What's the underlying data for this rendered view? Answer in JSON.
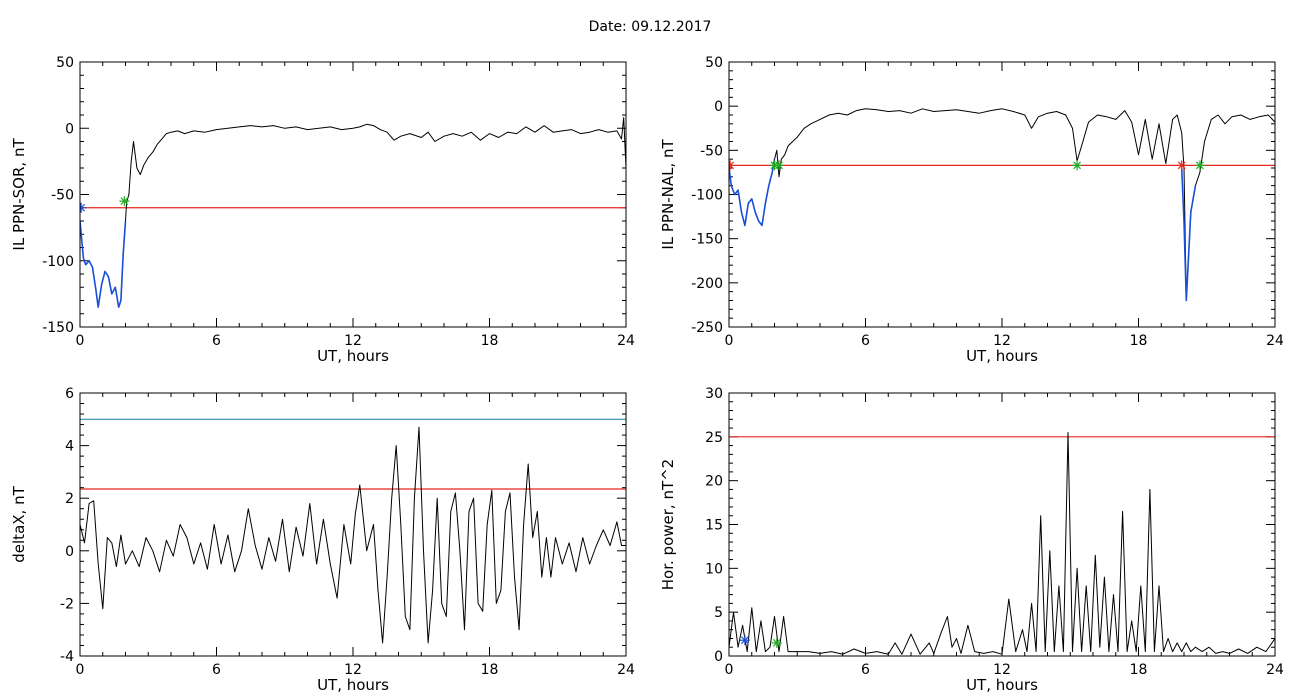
{
  "title": "Date:  09.12.2017",
  "colors": {
    "trace": "#000000",
    "selected": "#1a4fd8",
    "threshold_red": "#e8281e",
    "threshold_teal": "#2e8fb0",
    "marker_green": "#22aa22",
    "marker_red": "#e8281e",
    "marker_blue": "#1a4fd8"
  },
  "chart_data": [
    {
      "type": "line",
      "xlabel": "UT, hours",
      "ylabel": "IL PPN-SOR, nT",
      "xlim": [
        0,
        24
      ],
      "ylim": [
        -150,
        50
      ],
      "xticks": [
        0,
        6,
        12,
        18,
        24
      ],
      "yticks": [
        -150,
        -100,
        -50,
        0,
        50
      ],
      "grid": false,
      "thresholds": [
        {
          "y": -60,
          "color": "#e8281e"
        }
      ],
      "series": [
        {
          "color": "#000000",
          "x": [
            0,
            0.08,
            0.15,
            0.25,
            0.4,
            0.55,
            0.7,
            0.8,
            0.95,
            1.1,
            1.25,
            1.4,
            1.55,
            1.7,
            1.8,
            1.9,
            2.0,
            2.05,
            2.15,
            2.25,
            2.35,
            2.5,
            2.65,
            2.8,
            3.0,
            3.2,
            3.4,
            3.6,
            3.8,
            4.0,
            4.3,
            4.6,
            5.0,
            5.5,
            6.0,
            6.5,
            7.0,
            7.5,
            8.0,
            8.5,
            9.0,
            9.5,
            10.0,
            10.5,
            11.0,
            11.5,
            12.0,
            12.3,
            12.6,
            12.9,
            13.2,
            13.5,
            13.8,
            14.1,
            14.5,
            15.0,
            15.3,
            15.6,
            16.0,
            16.4,
            16.8,
            17.2,
            17.6,
            18.0,
            18.4,
            18.8,
            19.2,
            19.6,
            20.0,
            20.4,
            20.8,
            21.2,
            21.6,
            22.0,
            22.4,
            22.8,
            23.2,
            23.6,
            23.8,
            23.9,
            24.0
          ],
          "y": [
            -70,
            -85,
            -98,
            -103,
            -100,
            -105,
            -122,
            -135,
            -118,
            -108,
            -112,
            -125,
            -120,
            -135,
            -130,
            -95,
            -70,
            -56,
            -50,
            -25,
            -10,
            -30,
            -35,
            -28,
            -22,
            -18,
            -12,
            -8,
            -4,
            -3,
            -2,
            -4,
            -2,
            -3,
            -1,
            0,
            1,
            2,
            1,
            2,
            0,
            1,
            -1,
            0,
            1,
            -1,
            0,
            1,
            3,
            2,
            -1,
            -3,
            -9,
            -6,
            -4,
            -7,
            -3,
            -10,
            -6,
            -4,
            -6,
            -3,
            -9,
            -4,
            -7,
            -3,
            -4,
            1,
            -3,
            2,
            -3,
            -2,
            -1,
            -4,
            -3,
            -1,
            -3,
            -2,
            -8,
            8,
            -30
          ]
        },
        {
          "color": "#1a4fd8",
          "x": [
            0,
            0.08,
            0.15,
            0.25,
            0.4,
            0.55,
            0.7,
            0.8,
            0.95,
            1.1,
            1.25,
            1.4,
            1.55,
            1.7,
            1.8,
            1.9,
            2.0
          ],
          "y": [
            -70,
            -85,
            -98,
            -103,
            -100,
            -105,
            -122,
            -135,
            -118,
            -108,
            -112,
            -125,
            -120,
            -135,
            -130,
            -95,
            -70
          ]
        }
      ],
      "markers": [
        {
          "x": 0.05,
          "y": -60,
          "color": "#1a4fd8"
        },
        {
          "x": 1.95,
          "y": -55,
          "color": "#22aa22"
        }
      ]
    },
    {
      "type": "line",
      "xlabel": "UT, hours",
      "ylabel": "IL PPN-NAL, nT",
      "xlim": [
        0,
        24
      ],
      "ylim": [
        -250,
        50
      ],
      "xticks": [
        0,
        6,
        12,
        18,
        24
      ],
      "yticks": [
        -250,
        -200,
        -150,
        -100,
        -50,
        0,
        50
      ],
      "grid": false,
      "thresholds": [
        {
          "y": -67,
          "color": "#e8281e"
        }
      ],
      "series": [
        {
          "color": "#000000",
          "x": [
            0,
            0.1,
            0.25,
            0.4,
            0.55,
            0.7,
            0.85,
            1.0,
            1.15,
            1.3,
            1.45,
            1.6,
            1.75,
            1.9,
            2.0,
            2.1,
            2.2,
            2.3,
            2.45,
            2.6,
            2.8,
            3.0,
            3.3,
            3.6,
            4.0,
            4.4,
            4.8,
            5.2,
            5.6,
            6.0,
            6.5,
            7.0,
            7.5,
            8.0,
            8.5,
            9.0,
            9.5,
            10.0,
            10.5,
            11.0,
            11.5,
            12.0,
            12.5,
            13.0,
            13.3,
            13.6,
            14.0,
            14.4,
            14.8,
            15.1,
            15.3,
            15.5,
            15.8,
            16.2,
            16.6,
            17.0,
            17.4,
            17.7,
            18.0,
            18.3,
            18.6,
            18.9,
            19.2,
            19.5,
            19.7,
            19.9,
            20.0,
            20.1,
            20.3,
            20.5,
            20.7,
            20.9,
            21.2,
            21.5,
            21.8,
            22.1,
            22.5,
            22.9,
            23.3,
            23.7,
            24.0
          ],
          "y": [
            -70,
            -90,
            -100,
            -95,
            -120,
            -135,
            -110,
            -105,
            -120,
            -130,
            -135,
            -110,
            -90,
            -75,
            -60,
            -50,
            -80,
            -60,
            -55,
            -45,
            -40,
            -35,
            -25,
            -20,
            -15,
            -10,
            -8,
            -10,
            -5,
            -3,
            -4,
            -6,
            -5,
            -8,
            -3,
            -6,
            -5,
            -4,
            -6,
            -8,
            -5,
            -3,
            -6,
            -10,
            -25,
            -12,
            -8,
            -6,
            -10,
            -25,
            -62,
            -45,
            -18,
            -10,
            -12,
            -15,
            -5,
            -18,
            -55,
            -15,
            -60,
            -20,
            -65,
            -15,
            -10,
            -30,
            -70,
            -220,
            -120,
            -90,
            -75,
            -40,
            -15,
            -10,
            -20,
            -12,
            -10,
            -15,
            -12,
            -10,
            -18
          ]
        },
        {
          "color": "#1a4fd8",
          "x": [
            0,
            0.1,
            0.25,
            0.4,
            0.55,
            0.7,
            0.85,
            1.0,
            1.15,
            1.3,
            1.45,
            1.6,
            1.75,
            1.9,
            2.0
          ],
          "y": [
            -70,
            -90,
            -100,
            -95,
            -120,
            -135,
            -110,
            -105,
            -120,
            -130,
            -135,
            -110,
            -90,
            -75,
            -60
          ]
        },
        {
          "color": "#1a4fd8",
          "x": [
            19.9,
            20.0,
            20.1,
            20.3,
            20.5
          ],
          "y": [
            -70,
            -130,
            -220,
            -120,
            -90
          ]
        }
      ],
      "markers": [
        {
          "x": 0.05,
          "y": -67,
          "color": "#e8281e"
        },
        {
          "x": 2.0,
          "y": -67,
          "color": "#22aa22"
        },
        {
          "x": 2.2,
          "y": -67,
          "color": "#22aa22"
        },
        {
          "x": 15.3,
          "y": -67,
          "color": "#22aa22"
        },
        {
          "x": 19.9,
          "y": -67,
          "color": "#e8281e"
        },
        {
          "x": 20.7,
          "y": -67,
          "color": "#22aa22"
        }
      ]
    },
    {
      "type": "line",
      "xlabel": "UT, hours",
      "ylabel": "deltaX, nT",
      "xlim": [
        0,
        24
      ],
      "ylim": [
        -4,
        6
      ],
      "xticks": [
        0,
        6,
        12,
        18,
        24
      ],
      "yticks": [
        -4,
        -2,
        0,
        2,
        4,
        6
      ],
      "grid": false,
      "thresholds": [
        {
          "y": 5.0,
          "color": "#2e8fb0"
        },
        {
          "y": 2.35,
          "color": "#e8281e"
        }
      ],
      "series": [
        {
          "color": "#000000",
          "x": [
            0,
            0.2,
            0.4,
            0.6,
            0.8,
            1.0,
            1.2,
            1.4,
            1.6,
            1.8,
            2.0,
            2.3,
            2.6,
            2.9,
            3.2,
            3.5,
            3.8,
            4.1,
            4.4,
            4.7,
            5.0,
            5.3,
            5.6,
            5.9,
            6.2,
            6.5,
            6.8,
            7.1,
            7.4,
            7.7,
            8.0,
            8.3,
            8.6,
            8.9,
            9.2,
            9.5,
            9.8,
            10.1,
            10.4,
            10.7,
            11.0,
            11.3,
            11.6,
            11.9,
            12.1,
            12.3,
            12.6,
            12.9,
            13.1,
            13.3,
            13.5,
            13.7,
            13.9,
            14.1,
            14.3,
            14.5,
            14.7,
            14.9,
            15.1,
            15.3,
            15.5,
            15.7,
            15.9,
            16.1,
            16.3,
            16.5,
            16.7,
            16.9,
            17.1,
            17.3,
            17.5,
            17.7,
            17.9,
            18.1,
            18.3,
            18.5,
            18.7,
            18.9,
            19.1,
            19.3,
            19.5,
            19.7,
            19.9,
            20.1,
            20.3,
            20.5,
            20.7,
            20.9,
            21.2,
            21.5,
            21.8,
            22.1,
            22.4,
            22.7,
            23.0,
            23.3,
            23.6,
            23.8,
            24.0
          ],
          "y": [
            1.0,
            0.3,
            1.8,
            1.9,
            -0.5,
            -2.2,
            0.5,
            0.3,
            -0.6,
            0.6,
            -0.5,
            0.0,
            -0.6,
            0.5,
            0.0,
            -0.8,
            0.4,
            -0.2,
            1.0,
            0.5,
            -0.5,
            0.3,
            -0.7,
            1.0,
            -0.5,
            0.6,
            -0.8,
            0.0,
            1.6,
            0.2,
            -0.7,
            0.5,
            -0.4,
            1.2,
            -0.8,
            0.9,
            -0.2,
            1.8,
            -0.5,
            1.2,
            -0.5,
            -1.8,
            1.0,
            -0.5,
            1.4,
            2.5,
            0.0,
            1.0,
            -1.5,
            -3.5,
            -1.0,
            2.0,
            4.0,
            1.0,
            -2.5,
            -3.0,
            2.0,
            4.7,
            0.0,
            -3.5,
            -1.5,
            2.0,
            -2.0,
            -2.5,
            1.5,
            2.2,
            0.0,
            -3.0,
            1.5,
            2.0,
            -2.0,
            -2.3,
            1.0,
            2.3,
            -2.0,
            -1.5,
            1.5,
            2.2,
            -1.0,
            -3.0,
            1.0,
            3.3,
            0.5,
            1.5,
            -1.0,
            0.5,
            -1.0,
            0.5,
            -0.5,
            0.3,
            -0.8,
            0.5,
            -0.5,
            0.2,
            0.8,
            0.2,
            1.1,
            0.2,
            0.2
          ]
        }
      ],
      "markers": []
    },
    {
      "type": "line",
      "xlabel": "UT, hours",
      "ylabel": "Hor. power, nT^2",
      "xlim": [
        0,
        24
      ],
      "ylim": [
        0,
        30
      ],
      "xticks": [
        0,
        6,
        12,
        18,
        24
      ],
      "yticks": [
        0,
        5,
        10,
        15,
        20,
        25,
        30
      ],
      "grid": false,
      "thresholds": [
        {
          "y": 25,
          "color": "#e8281e"
        }
      ],
      "series": [
        {
          "color": "#000000",
          "x": [
            0,
            0.2,
            0.4,
            0.6,
            0.8,
            1.0,
            1.2,
            1.4,
            1.6,
            1.8,
            2.0,
            2.2,
            2.4,
            2.6,
            3.0,
            3.5,
            4.0,
            4.5,
            5.0,
            5.5,
            6.0,
            6.5,
            7.0,
            7.3,
            7.6,
            8.0,
            8.4,
            8.8,
            9.0,
            9.3,
            9.6,
            9.8,
            10.0,
            10.2,
            10.5,
            10.8,
            11.2,
            11.6,
            12.0,
            12.3,
            12.6,
            12.9,
            13.1,
            13.3,
            13.5,
            13.7,
            13.9,
            14.1,
            14.3,
            14.5,
            14.7,
            14.9,
            15.1,
            15.3,
            15.5,
            15.7,
            15.9,
            16.1,
            16.3,
            16.5,
            16.7,
            16.9,
            17.1,
            17.3,
            17.5,
            17.7,
            17.9,
            18.1,
            18.3,
            18.5,
            18.7,
            18.9,
            19.1,
            19.3,
            19.5,
            19.7,
            19.9,
            20.1,
            20.3,
            20.5,
            20.8,
            21.1,
            21.4,
            21.7,
            22.0,
            22.4,
            22.8,
            23.2,
            23.6,
            24.0
          ],
          "y": [
            1.0,
            5.0,
            1.0,
            3.5,
            0.5,
            5.5,
            0.5,
            4.0,
            0.5,
            1.0,
            4.5,
            0.5,
            4.5,
            0.5,
            0.5,
            0.5,
            0.3,
            0.5,
            0.2,
            0.8,
            0.3,
            0.5,
            0.2,
            1.5,
            0.2,
            2.5,
            0.2,
            1.5,
            0.3,
            2.5,
            4.5,
            1.0,
            2.0,
            0.3,
            3.5,
            0.5,
            0.3,
            0.5,
            0.2,
            6.5,
            0.5,
            3.0,
            0.5,
            6.0,
            0.5,
            16.0,
            0.5,
            12.0,
            0.5,
            8.0,
            0.5,
            25.5,
            0.5,
            10.0,
            0.5,
            8.0,
            0.5,
            11.5,
            1.0,
            9.0,
            0.5,
            7.0,
            0.5,
            16.5,
            0.5,
            4.0,
            0.5,
            8.0,
            0.5,
            19.0,
            0.5,
            8.0,
            0.5,
            2.0,
            0.5,
            1.5,
            0.5,
            1.5,
            0.5,
            1.0,
            0.5,
            1.0,
            0.3,
            0.5,
            0.3,
            0.8,
            0.3,
            1.0,
            0.5,
            2.0
          ]
        }
      ],
      "markers": [
        {
          "x": 0.7,
          "y": 1.8,
          "color": "#1a4fd8"
        },
        {
          "x": 2.1,
          "y": 1.5,
          "color": "#22aa22"
        }
      ]
    }
  ]
}
